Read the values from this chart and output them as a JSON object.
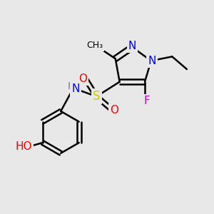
{
  "background_color": "#e8e8e8",
  "bond_color": "black",
  "bond_width": 1.8,
  "atom_colors": {
    "N": "#0000ff",
    "O": "#ff0000",
    "S": "#cccc00",
    "F": "#cc00cc",
    "H": "#777777",
    "C": "black"
  },
  "font_size": 10,
  "fig_size": [
    3.0,
    3.0
  ],
  "dpi": 100
}
